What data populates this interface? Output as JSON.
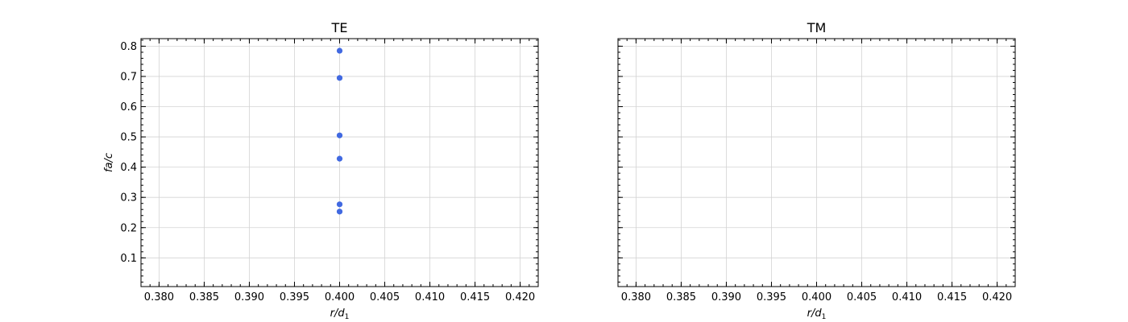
{
  "chart_data": [
    {
      "type": "scatter",
      "title": "TE",
      "xlabel": "r/d",
      "xlabel_sub": "1",
      "ylabel": "fa/c",
      "xlim": [
        0.378,
        0.422
      ],
      "ylim": [
        0.005,
        0.825
      ],
      "x_ticks": [
        0.38,
        0.385,
        0.39,
        0.395,
        0.4,
        0.405,
        0.41,
        0.415,
        0.42
      ],
      "x_tick_labels": [
        "0.380",
        "0.385",
        "0.390",
        "0.395",
        "0.400",
        "0.405",
        "0.410",
        "0.415",
        "0.420"
      ],
      "y_ticks": [
        0.1,
        0.2,
        0.3,
        0.4,
        0.5,
        0.6,
        0.7,
        0.8
      ],
      "y_tick_labels": [
        "0.1",
        "0.2",
        "0.3",
        "0.4",
        "0.5",
        "0.6",
        "0.7",
        "0.8"
      ],
      "grid": true,
      "marker_color": "#4169e1",
      "series": [
        {
          "x": [
            0.4,
            0.4,
            0.4,
            0.4,
            0.4,
            0.4
          ],
          "y": [
            0.785,
            0.695,
            0.505,
            0.428,
            0.277,
            0.253
          ]
        }
      ]
    },
    {
      "type": "scatter",
      "title": "TM",
      "xlabel": "r/d",
      "xlabel_sub": "1",
      "ylabel": "",
      "xlim": [
        0.378,
        0.422
      ],
      "ylim": [
        0.005,
        0.825
      ],
      "x_ticks": [
        0.38,
        0.385,
        0.39,
        0.395,
        0.4,
        0.405,
        0.41,
        0.415,
        0.42
      ],
      "x_tick_labels": [
        "0.380",
        "0.385",
        "0.390",
        "0.395",
        "0.400",
        "0.405",
        "0.410",
        "0.415",
        "0.420"
      ],
      "y_ticks": [
        0.1,
        0.2,
        0.3,
        0.4,
        0.5,
        0.6,
        0.7,
        0.8
      ],
      "y_tick_labels": [],
      "grid": true,
      "marker_color": "#4169e1",
      "series": [
        {
          "x": [],
          "y": []
        }
      ]
    }
  ]
}
